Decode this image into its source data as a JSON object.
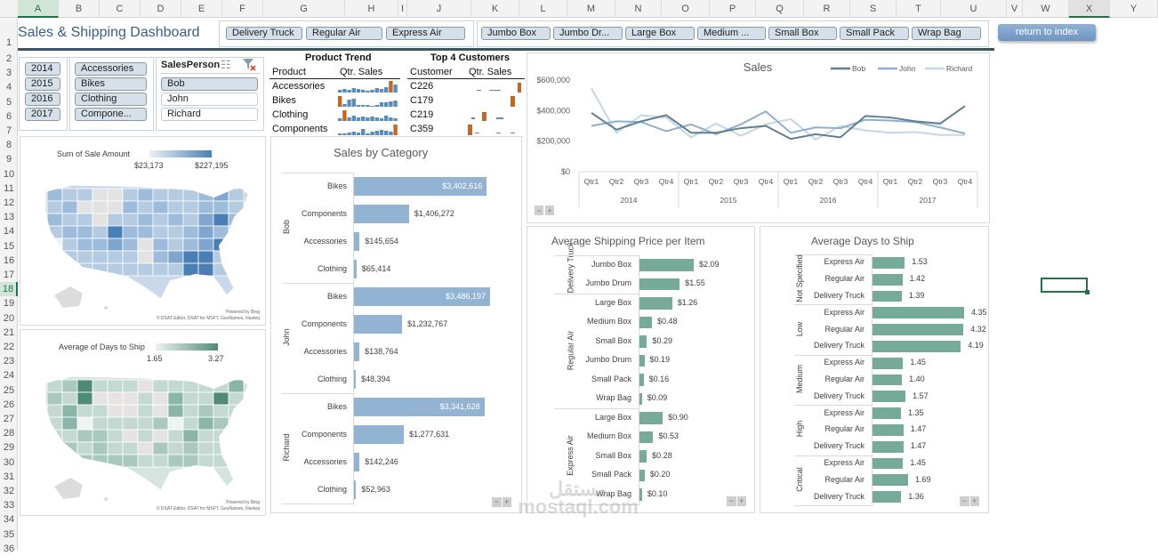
{
  "spreadsheet": {
    "columns": [
      "A",
      "B",
      "C",
      "D",
      "E",
      "F",
      "G",
      "H",
      "I",
      "J",
      "K",
      "L",
      "M",
      "N",
      "O",
      "P",
      "Q",
      "R",
      "S",
      "T",
      "U",
      "V",
      "W",
      "X",
      "Y"
    ],
    "rows": [
      "1",
      "2",
      "3",
      "4",
      "5",
      "6",
      "7",
      "8",
      "9",
      "10",
      "11",
      "12",
      "13",
      "14",
      "15",
      "16",
      "17",
      "18",
      "19",
      "20",
      "21",
      "22",
      "23",
      "24",
      "25",
      "26",
      "27",
      "28",
      "29",
      "30",
      "31",
      "32",
      "33",
      "34",
      "35",
      "36"
    ],
    "selected_cell": "X18"
  },
  "dashboard": {
    "title": "Sales & Shipping Dashboard",
    "return_button": "return to index",
    "ship_mode_slicer": [
      "Delivery Truck",
      "Regular Air",
      "Express Air"
    ],
    "container_slicer": [
      "Jumbo Box",
      "Jumbo Dr...",
      "Large Box",
      "Medium ...",
      "Small Box",
      "Small Pack",
      "Wrap Bag"
    ],
    "year_slicer": [
      "2014",
      "2015",
      "2016",
      "2017"
    ],
    "category_slicer": [
      "Accessories",
      "Bikes",
      "Clothing",
      "Compone..."
    ],
    "salesperson_slicer": {
      "title": "SalesPerson",
      "items": [
        {
          "label": "Bob",
          "selected": true
        },
        {
          "label": "John",
          "selected": false
        },
        {
          "label": "Richard",
          "selected": false
        }
      ]
    }
  },
  "product_trend": {
    "title": "Product Trend",
    "col_product": "Product",
    "col_sales": "Qtr. Sales",
    "rows": [
      "Accessories",
      "Bikes",
      "Clothing",
      "Components"
    ]
  },
  "top_customers": {
    "title": "Top 4 Customers",
    "col_customer": "Customer",
    "col_sales": "Qtr. Sales",
    "rows": [
      "C226",
      "C179",
      "C219",
      "C359"
    ]
  },
  "maps": {
    "sales_map": {
      "title": "Sum of Sale Amount",
      "min": "$23,173",
      "max": "$227,195",
      "credit1": "Powered by Bing",
      "credit2": "© DSAT Editor, DSAT for MSFT, GeoNames, Navteq",
      "color": "#4a7fb5"
    },
    "days_map": {
      "title": "Average of Days to Ship",
      "min": "1.65",
      "max": "3.27",
      "credit1": "Powered by Bing",
      "credit2": "© DSAT Editor, DSAT for MSFT, GeoNames, Navteq",
      "color": "#4f8a79"
    }
  },
  "chart_data": [
    {
      "type": "line",
      "title": "Sales",
      "y_ticks": [
        "$600,000",
        "$400,000",
        "$200,000",
        "$0"
      ],
      "ylim": [
        0,
        600000
      ],
      "categories": [
        "Qtr1",
        "Qtr2",
        "Qtr3",
        "Qtr4",
        "Qtr1",
        "Qtr2",
        "Qtr3",
        "Qtr4",
        "Qtr1",
        "Qtr2",
        "Qtr3",
        "Qtr4",
        "Qtr1",
        "Qtr2",
        "Qtr3",
        "Qtr4"
      ],
      "groups": [
        "2014",
        "2015",
        "2016",
        "2017"
      ],
      "legend_position": "top-right",
      "series": [
        {
          "name": "Bob",
          "color": "#5f7f93",
          "values": [
            385000,
            275000,
            330000,
            370000,
            255000,
            255000,
            285000,
            300000,
            215000,
            245000,
            225000,
            365000,
            355000,
            330000,
            315000,
            430000
          ]
        },
        {
          "name": "John",
          "color": "#8fb0cc",
          "values": [
            300000,
            330000,
            325000,
            265000,
            310000,
            245000,
            310000,
            395000,
            255000,
            290000,
            285000,
            340000,
            335000,
            325000,
            290000,
            250000
          ]
        },
        {
          "name": "Richard",
          "color": "#c5d6e4",
          "values": [
            545000,
            255000,
            370000,
            355000,
            225000,
            315000,
            235000,
            310000,
            345000,
            210000,
            300000,
            270000,
            255000,
            260000,
            240000,
            240000
          ]
        }
      ]
    },
    {
      "type": "bar",
      "title": "Sales by Category",
      "groups": [
        {
          "name": "Bob",
          "categories": [
            "Bikes",
            "Components",
            "Accessories",
            "Clothing"
          ],
          "values": [
            3402616,
            1406272,
            145654,
            65414
          ],
          "labels": [
            "$3,402,616",
            "$1,406,272",
            "$145,654",
            "$65,414"
          ]
        },
        {
          "name": "John",
          "categories": [
            "Bikes",
            "Components",
            "Accessories",
            "Clothing"
          ],
          "values": [
            3486197,
            1232767,
            138764,
            48394
          ],
          "labels": [
            "$3,486,197",
            "$1,232,767",
            "$138,764",
            "$48,394"
          ]
        },
        {
          "name": "Richard",
          "categories": [
            "Bikes",
            "Components",
            "Accessories",
            "Clothing"
          ],
          "values": [
            3341628,
            1277631,
            142246,
            52963
          ],
          "labels": [
            "$3,341,628",
            "$1,277,631",
            "$142,246",
            "$52,963"
          ]
        }
      ],
      "max": 3486197,
      "color": "#92b4d2"
    },
    {
      "type": "bar",
      "title": "Average Shipping Price per Item",
      "groups": [
        {
          "name": "Delivery Truck",
          "categories": [
            "Jumbo Box",
            "Jumbo Drum"
          ],
          "values": [
            2.09,
            1.55
          ],
          "labels": [
            "$2.09",
            "$1.55"
          ]
        },
        {
          "name": "Regular Air",
          "categories": [
            "Large Box",
            "Medium Box",
            "Small Box",
            "Jumbo Drum",
            "Small Pack",
            "Wrap Bag"
          ],
          "values": [
            1.26,
            0.48,
            0.29,
            0.19,
            0.16,
            0.09
          ],
          "labels": [
            "$1.26",
            "$0.48",
            "$0.29",
            "$0.19",
            "$0.16",
            "$0.09"
          ]
        },
        {
          "name": "Express Air",
          "categories": [
            "Large Box",
            "Medium Box",
            "Small Box",
            "Small Pack",
            "Wrap Bag"
          ],
          "values": [
            0.9,
            0.53,
            0.28,
            0.2,
            0.1
          ],
          "labels": [
            "$0.90",
            "$0.53",
            "$0.28",
            "$0.20",
            "$0.10"
          ]
        }
      ],
      "max": 2.09,
      "color": "#76ab99"
    },
    {
      "type": "bar",
      "title": "Average Days to Ship",
      "groups": [
        {
          "name": "Not Specified",
          "categories": [
            "Express Air",
            "Regular Air",
            "Delivery Truck"
          ],
          "values": [
            1.53,
            1.42,
            1.39
          ],
          "labels": [
            "1.53",
            "1.42",
            "1.39"
          ]
        },
        {
          "name": "Low",
          "categories": [
            "Express Air",
            "Regular Air",
            "Delivery Truck"
          ],
          "values": [
            4.35,
            4.32,
            4.19
          ],
          "labels": [
            "4.35",
            "4.32",
            "4.19"
          ]
        },
        {
          "name": "Medium",
          "categories": [
            "Express Air",
            "Regular Air",
            "Delivery Truck"
          ],
          "values": [
            1.45,
            1.4,
            1.57
          ],
          "labels": [
            "1.45",
            "1.40",
            "1.57"
          ]
        },
        {
          "name": "High",
          "categories": [
            "Express Air",
            "Regular Air",
            "Delivery Truck"
          ],
          "values": [
            1.35,
            1.47,
            1.47
          ],
          "labels": [
            "1.35",
            "1.47",
            "1.47"
          ]
        },
        {
          "name": "Critical",
          "categories": [
            "Express Air",
            "Regular Air",
            "Delivery Truck"
          ],
          "values": [
            1.45,
            1.69,
            1.36
          ],
          "labels": [
            "1.45",
            "1.69",
            "1.36"
          ]
        }
      ],
      "max": 4.35,
      "color": "#76ab99"
    }
  ],
  "zoom_controls": {
    "minus": "−",
    "plus": "+"
  },
  "watermark": {
    "text1": "مستقل",
    "text2": "mostaql.com"
  }
}
